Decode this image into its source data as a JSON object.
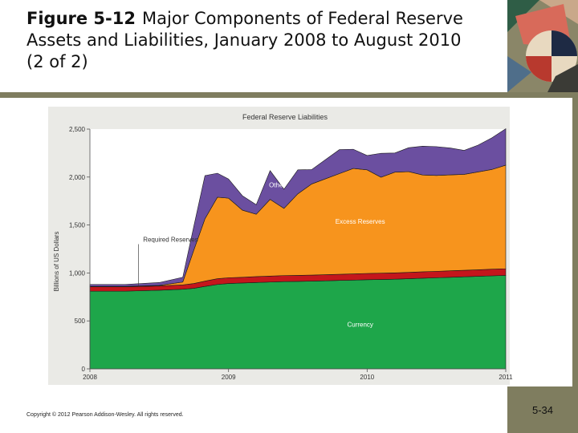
{
  "slide": {
    "figure_label": "Figure 5-12",
    "title": "Major Components of Federal Reserve Assets and Liabilities, January 2008 to August 2010 (2 of 2)",
    "copyright": "Copyright © 2012 Pearson Addison-Wesley. All rights reserved.",
    "page_number": "5-34"
  },
  "colors": {
    "currency": "#1ea64a",
    "required_reserves": "#c4161c",
    "excess_reserves": "#f7941d",
    "other": "#6b4fa0",
    "frame": "#7f7d5f",
    "chart_bg": "#eaeae6"
  },
  "chart_data": {
    "type": "area",
    "stacked": true,
    "title": "Federal Reserve Liabilities",
    "xlabel": "",
    "ylabel": "Billions of US Dollars",
    "xlim": [
      2008.0,
      2011.0
    ],
    "ylim": [
      0,
      2500
    ],
    "x_ticks": [
      2008,
      2009,
      2010,
      2011
    ],
    "x_tick_labels": [
      "2008",
      "2009",
      "2010",
      "2011"
    ],
    "y_ticks": [
      0,
      500,
      1000,
      1500,
      2000,
      2500
    ],
    "y_tick_labels": [
      "0",
      "500",
      "1,000",
      "1,500",
      "2,000",
      "2,500"
    ],
    "annotations": [
      {
        "text": "Required Reserves",
        "series": "Required Reserves"
      }
    ],
    "x": [
      2008.0,
      2008.25,
      2008.5,
      2008.67,
      2008.75,
      2008.83,
      2008.92,
      2009.0,
      2009.1,
      2009.2,
      2009.3,
      2009.4,
      2009.5,
      2009.6,
      2009.7,
      2009.8,
      2009.9,
      2010.0,
      2010.1,
      2010.2,
      2010.3,
      2010.4,
      2010.5,
      2010.6,
      2010.7,
      2010.8,
      2010.9,
      2011.0
    ],
    "series": [
      {
        "name": "Currency",
        "label": "Currency",
        "values": [
          810,
          810,
          820,
          830,
          840,
          860,
          880,
          890,
          895,
          900,
          905,
          910,
          912,
          915,
          918,
          922,
          925,
          930,
          932,
          935,
          940,
          945,
          950,
          955,
          960,
          965,
          970,
          975
        ]
      },
      {
        "name": "Required Reserves",
        "label": "",
        "values": [
          45,
          45,
          45,
          45,
          50,
          55,
          60,
          60,
          60,
          62,
          62,
          63,
          63,
          63,
          64,
          64,
          65,
          65,
          66,
          66,
          66,
          67,
          67,
          68,
          68,
          68,
          69,
          69
        ]
      },
      {
        "name": "Excess Reserves",
        "label": "Excess Reserves",
        "values": [
          5,
          5,
          5,
          30,
          350,
          650,
          850,
          830,
          700,
          650,
          800,
          700,
          850,
          950,
          1000,
          1050,
          1100,
          1080,
          1000,
          1050,
          1050,
          1010,
          1000,
          1000,
          1000,
          1020,
          1040,
          1080
        ]
      },
      {
        "name": "Other",
        "label": "Other",
        "values": [
          20,
          20,
          30,
          50,
          250,
          450,
          250,
          200,
          150,
          100,
          300,
          200,
          250,
          150,
          200,
          250,
          200,
          150,
          250,
          200,
          250,
          300,
          300,
          280,
          250,
          280,
          330,
          380
        ]
      }
    ]
  }
}
